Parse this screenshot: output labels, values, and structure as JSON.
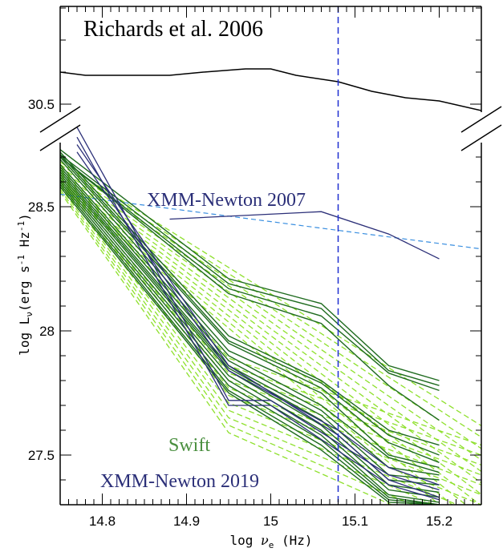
{
  "chart_data": {
    "type": "line",
    "xlabel": "log ν_e (Hz)",
    "ylabel": "log L_ν(erg s^-1 Hz^-1)",
    "xlim": [
      14.75,
      15.25
    ],
    "ylim_lower": [
      27.3,
      28.8
    ],
    "ylim_upper": [
      30.4,
      30.8
    ],
    "x_ticks": [
      "14.8",
      "14.9",
      "15",
      "15.1",
      "15.2"
    ],
    "y_ticks_lower": [
      "27.5",
      "28",
      "28.5"
    ],
    "y_ticks_upper": [
      "30.5"
    ],
    "broken_axis": true,
    "vline_x": 15.08,
    "annotations": {
      "richards": "Richards et al. 2006",
      "xmm2007": "XMM-Newton 2007",
      "swift": "Swift",
      "xmm2019": "XMM-Newton 2019"
    },
    "colors": {
      "richards": "#000000",
      "xmm": "#2b2f78",
      "swift": "#1f6b1f",
      "swift_label": "#4a8f3f",
      "model": "#8ee02c",
      "dashed_blue": "#3a8fe0",
      "vline": "#1f2fd0"
    },
    "richards_curve": [
      [
        14.75,
        30.6
      ],
      [
        14.78,
        30.59
      ],
      [
        14.88,
        30.59
      ],
      [
        14.92,
        30.6
      ],
      [
        14.97,
        30.61
      ],
      [
        15.0,
        30.61
      ],
      [
        15.03,
        30.59
      ],
      [
        15.08,
        30.57
      ],
      [
        15.12,
        30.54
      ],
      [
        15.16,
        30.52
      ],
      [
        15.2,
        30.51
      ],
      [
        15.25,
        30.48
      ]
    ],
    "dashed_blue_line": [
      [
        14.75,
        28.55
      ],
      [
        15.25,
        28.33
      ]
    ],
    "xmm_2007": [
      [
        14.88,
        28.45
      ],
      [
        15.06,
        28.48
      ],
      [
        15.14,
        28.39
      ],
      [
        15.2,
        28.29
      ]
    ],
    "xmm_2019": [
      [
        [
          14.77,
          28.82
        ],
        [
          14.95,
          27.72
        ],
        [
          15.0,
          27.72
        ],
        [
          15.14,
          27.42
        ],
        [
          15.2,
          27.36
        ]
      ],
      [
        [
          14.77,
          28.78
        ],
        [
          14.95,
          27.7
        ],
        [
          15.0,
          27.7
        ],
        [
          15.14,
          27.38
        ],
        [
          15.2,
          27.32
        ]
      ],
      [
        [
          14.77,
          28.75
        ],
        [
          14.95,
          27.86
        ],
        [
          15.08,
          27.58
        ],
        [
          15.14,
          27.4
        ],
        [
          15.2,
          27.33
        ]
      ],
      [
        [
          14.77,
          28.72
        ],
        [
          14.95,
          27.84
        ],
        [
          15.08,
          27.6
        ],
        [
          15.14,
          27.45
        ],
        [
          15.2,
          27.38
        ]
      ]
    ],
    "swift": [
      {
        "a": 28.73,
        "b": 28.21,
        "c": 28.11,
        "d": 27.86,
        "e": 27.8
      },
      {
        "a": 28.71,
        "b": 28.19,
        "c": 28.09,
        "d": 27.84,
        "e": 27.78
      },
      {
        "a": 28.7,
        "b": 28.17,
        "c": 28.06,
        "d": 27.83,
        "e": 27.76
      },
      {
        "a": 28.7,
        "b": 28.15,
        "c": 28.03,
        "d": 27.78,
        "e": 27.64
      },
      {
        "a": 28.72,
        "b": 27.98,
        "c": 27.8,
        "d": 27.6,
        "e": 27.54
      },
      {
        "a": 28.71,
        "b": 27.96,
        "c": 27.79,
        "d": 27.58,
        "e": 27.5
      },
      {
        "a": 28.7,
        "b": 27.95,
        "c": 27.77,
        "d": 27.55,
        "e": 27.47
      },
      {
        "a": 28.69,
        "b": 27.92,
        "c": 27.75,
        "d": 27.5,
        "e": 27.45
      },
      {
        "a": 28.67,
        "b": 27.9,
        "c": 27.7,
        "d": 27.49,
        "e": 27.43
      },
      {
        "a": 28.66,
        "b": 27.88,
        "c": 27.68,
        "d": 27.45,
        "e": 27.42
      },
      {
        "a": 28.65,
        "b": 27.86,
        "c": 27.66,
        "d": 27.42,
        "e": 27.4
      },
      {
        "a": 28.64,
        "b": 27.85,
        "c": 27.64,
        "d": 27.4,
        "e": 27.38
      },
      {
        "a": 28.63,
        "b": 27.84,
        "c": 27.62,
        "d": 27.38,
        "e": 27.35
      },
      {
        "a": 28.62,
        "b": 27.82,
        "c": 27.6,
        "d": 27.36,
        "e": 27.33
      },
      {
        "a": 28.61,
        "b": 27.8,
        "c": 27.58,
        "d": 27.34,
        "e": 27.31
      },
      {
        "a": 28.6,
        "b": 27.78,
        "c": 27.56,
        "d": 27.33,
        "e": 27.3
      },
      {
        "a": 28.59,
        "b": 27.76,
        "c": 27.54,
        "d": 27.32,
        "e": 27.3
      },
      {
        "a": 28.58,
        "b": 27.75,
        "c": 27.52,
        "d": 27.31,
        "e": 27.3
      }
    ],
    "models": [
      {
        "y0": 28.68,
        "y1": 27.89,
        "y2": 27.72
      },
      {
        "y0": 28.67,
        "y1": 27.86,
        "y2": 27.68
      },
      {
        "y0": 28.66,
        "y1": 27.83,
        "y2": 27.64
      },
      {
        "y0": 28.65,
        "y1": 27.8,
        "y2": 27.6
      },
      {
        "y0": 28.64,
        "y1": 27.77,
        "y2": 27.56
      },
      {
        "y0": 28.63,
        "y1": 27.74,
        "y2": 27.52
      },
      {
        "y0": 28.62,
        "y1": 27.71,
        "y2": 27.48
      },
      {
        "y0": 28.61,
        "y1": 27.68,
        "y2": 27.44
      },
      {
        "y0": 28.6,
        "y1": 27.65,
        "y2": 27.4
      },
      {
        "y0": 28.59,
        "y1": 27.62,
        "y2": 27.36
      },
      {
        "y0": 28.58,
        "y1": 27.59,
        "y2": 27.32
      }
    ]
  }
}
